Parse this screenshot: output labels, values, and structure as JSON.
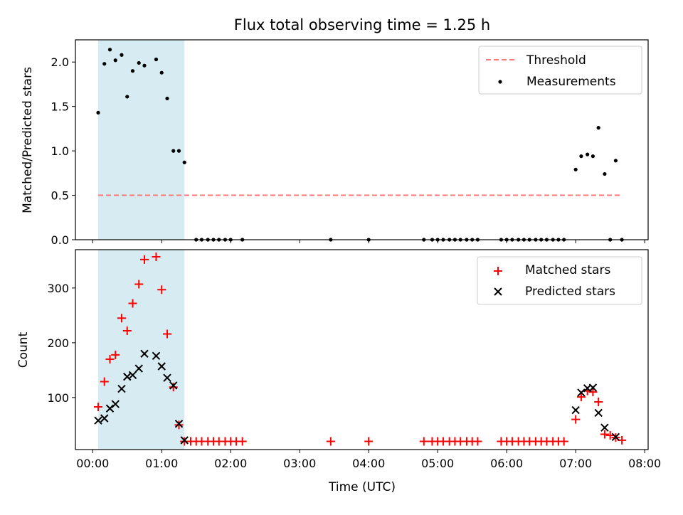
{
  "chart_data": [
    {
      "type": "scatter",
      "title": "Flux total observing time = 1.25 h",
      "xlabel": "",
      "ylabel": "Matched/Predicted stars",
      "xlim": [
        -0.25,
        8.05
      ],
      "ylim": [
        0,
        2.25
      ],
      "yticks": [
        0,
        0.5,
        1.0,
        1.5,
        2.0
      ],
      "ytick_labels": [
        "0.0",
        "0.5",
        "1.0",
        "1.5",
        "2.0"
      ],
      "shaded_span": [
        0.08,
        1.33
      ],
      "shade_color": "#add8e6",
      "legend": {
        "position": "top-right",
        "entries": [
          "Threshold",
          "Measurements"
        ]
      },
      "threshold": {
        "name": "Threshold",
        "value": 0.5,
        "x_range": [
          0.08,
          7.67
        ],
        "color": "#ff7777"
      },
      "series": [
        {
          "name": "Measurements",
          "color": "#000000",
          "x": [
            0.08,
            0.17,
            0.25,
            0.33,
            0.42,
            0.5,
            0.58,
            0.67,
            0.75,
            0.92,
            1.0,
            1.08,
            1.17,
            1.25,
            1.33,
            1.5,
            1.58,
            1.67,
            1.75,
            1.83,
            1.92,
            2.0,
            2.17,
            3.45,
            4.0,
            4.8,
            4.92,
            5.0,
            5.08,
            5.17,
            5.25,
            5.33,
            5.42,
            5.5,
            5.58,
            5.92,
            6.0,
            6.08,
            6.17,
            6.25,
            6.33,
            6.42,
            6.5,
            6.58,
            6.67,
            6.75,
            6.83,
            7.0,
            7.08,
            7.17,
            7.25,
            7.33,
            7.42,
            7.5,
            7.58,
            7.67
          ],
          "y": [
            1.43,
            1.98,
            2.14,
            2.02,
            2.08,
            1.61,
            1.9,
            1.99,
            1.96,
            2.03,
            1.88,
            1.59,
            1.0,
            1.0,
            0.87,
            0,
            0,
            0,
            0,
            0,
            0,
            0,
            0,
            0,
            0,
            0,
            0,
            0,
            0,
            0,
            0,
            0,
            0,
            0,
            0,
            0,
            0,
            0,
            0,
            0,
            0,
            0,
            0,
            0,
            0,
            0,
            0,
            0.79,
            0.94,
            0.96,
            0.94,
            1.26,
            0.74,
            0,
            0.89,
            0
          ]
        }
      ]
    },
    {
      "type": "scatter",
      "title": "",
      "xlabel": "Time (UTC)",
      "ylabel": "Count",
      "xlim": [
        -0.25,
        8.05
      ],
      "ylim": [
        5,
        370
      ],
      "yticks": [
        100,
        200,
        300
      ],
      "ytick_labels": [
        "100",
        "200",
        "300"
      ],
      "xticks": [
        0,
        1,
        2,
        3,
        4,
        5,
        6,
        7,
        8
      ],
      "xtick_labels": [
        "00:00",
        "01:00",
        "02:00",
        "03:00",
        "04:00",
        "05:00",
        "06:00",
        "07:00",
        "08:00"
      ],
      "shaded_span": [
        0.08,
        1.33
      ],
      "shade_color": "#add8e6",
      "legend": {
        "position": "top-right",
        "entries": [
          "Matched stars",
          "Predicted stars"
        ]
      },
      "series": [
        {
          "name": "Matched stars",
          "marker": "+",
          "color": "#ff0000",
          "x": [
            0.08,
            0.17,
            0.25,
            0.33,
            0.42,
            0.5,
            0.58,
            0.67,
            0.75,
            0.92,
            1.0,
            1.08,
            1.17,
            1.25,
            1.33,
            1.42,
            1.5,
            1.58,
            1.67,
            1.75,
            1.83,
            1.92,
            2.0,
            2.08,
            2.17,
            3.45,
            4.0,
            4.8,
            4.92,
            5.0,
            5.08,
            5.17,
            5.25,
            5.33,
            5.42,
            5.5,
            5.58,
            5.92,
            6.0,
            6.08,
            6.17,
            6.25,
            6.33,
            6.42,
            6.5,
            6.58,
            6.67,
            6.75,
            6.83,
            7.0,
            7.08,
            7.17,
            7.25,
            7.33,
            7.42,
            7.5,
            7.58,
            7.67
          ],
          "y": [
            83,
            129,
            170,
            178,
            245,
            222,
            272,
            307,
            352,
            357,
            297,
            216,
            119,
            50,
            20,
            20,
            20,
            20,
            20,
            20,
            20,
            20,
            20,
            20,
            20,
            20,
            20,
            20,
            20,
            20,
            20,
            20,
            20,
            20,
            20,
            20,
            20,
            20,
            20,
            20,
            20,
            20,
            20,
            20,
            20,
            20,
            20,
            20,
            20,
            60,
            101,
            112,
            110,
            92,
            33,
            31,
            27,
            22
          ]
        },
        {
          "name": "Predicted stars",
          "marker": "x",
          "color": "#000000",
          "x": [
            0.08,
            0.17,
            0.25,
            0.33,
            0.42,
            0.5,
            0.58,
            0.67,
            0.75,
            0.92,
            1.0,
            1.08,
            1.17,
            1.25,
            1.33,
            7.0,
            7.08,
            7.17,
            7.25,
            7.33,
            7.42,
            7.58
          ],
          "y": [
            58,
            62,
            80,
            88,
            116,
            138,
            141,
            153,
            180,
            176,
            157,
            136,
            122,
            52,
            22,
            77,
            109,
            117,
            118,
            72,
            45,
            28
          ]
        }
      ]
    }
  ]
}
